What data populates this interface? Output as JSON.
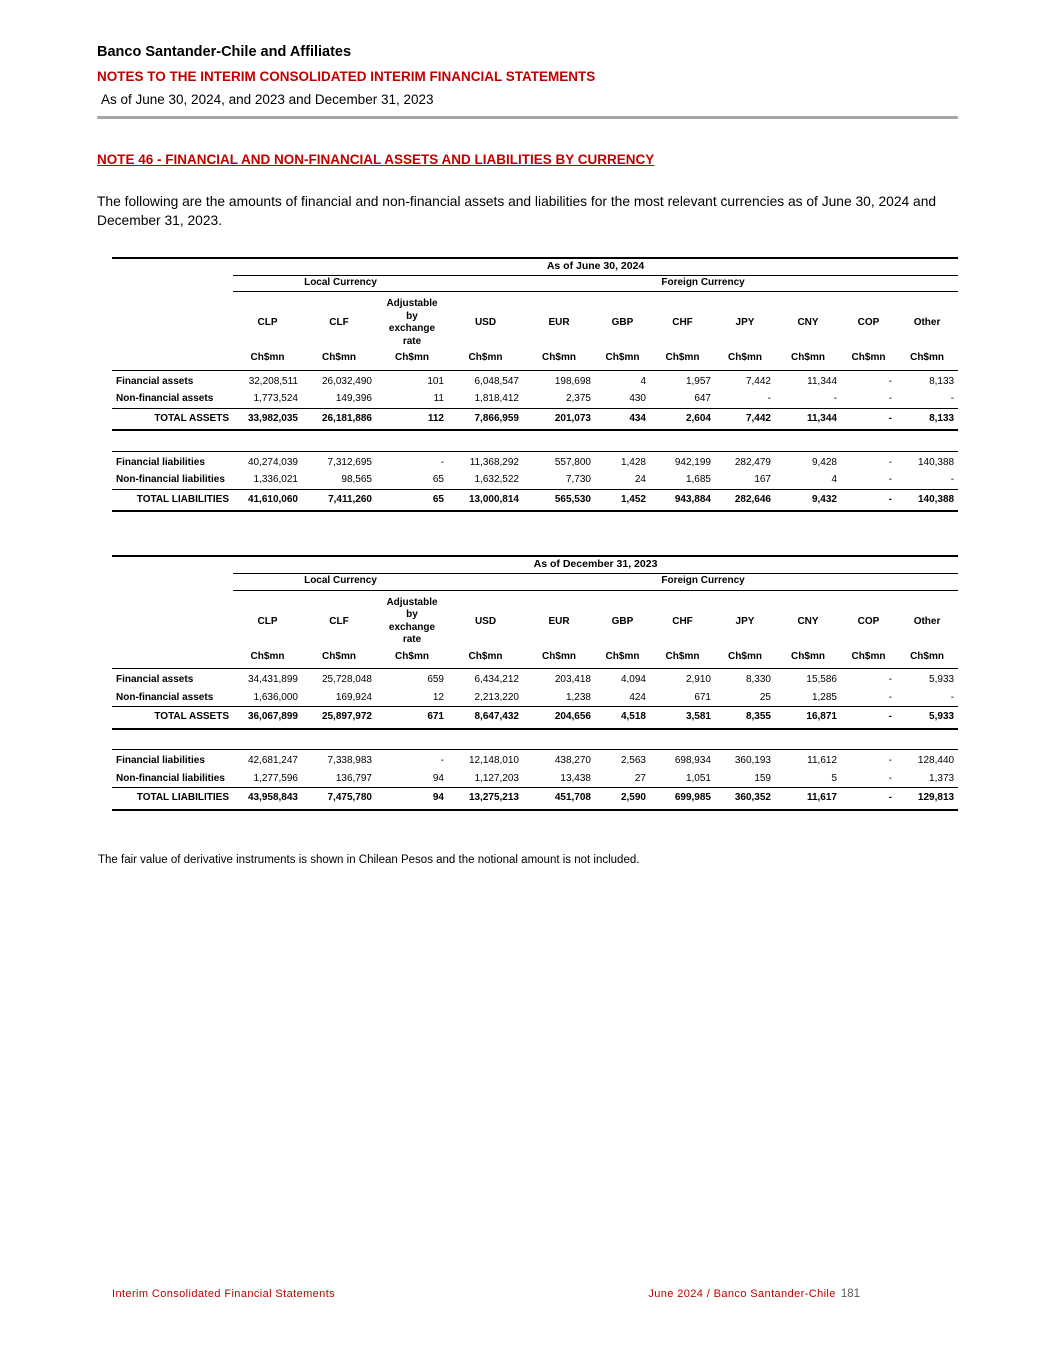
{
  "header": {
    "company": "Banco Santander-Chile and Affiliates",
    "notes_title": "NOTES TO THE INTERIM CONSOLIDATED INTERIM FINANCIAL STATEMENTS",
    "date_line": "As of June 30, 2024, and 2023 and December 31, 2023"
  },
  "note": {
    "title": "NOTE 46 - FINANCIAL AND NON-FINANCIAL ASSETS AND LIABILITIES BY CURRENCY",
    "intro": "The following are the amounts of financial and non-financial assets and liabilities for the most relevant currencies as of June 30, 2024 and December 31, 2023."
  },
  "tables": [
    {
      "title": "As of June 30, 2024",
      "local_currency_label": "Local Currency",
      "foreign_currency_label": "Foreign Currency",
      "columns": [
        "CLP",
        "CLF",
        "Adjustable by exchange rate",
        "USD",
        "EUR",
        "GBP",
        "CHF",
        "JPY",
        "CNY",
        "COP",
        "Other"
      ],
      "unit": "Ch$mn",
      "sections": [
        {
          "rows": [
            {
              "label": "Financial assets",
              "values": [
                "32,208,511",
                "26,032,490",
                "101",
                "6,048,547",
                "198,698",
                "4",
                "1,957",
                "7,442",
                "11,344",
                "-",
                "8,133"
              ]
            },
            {
              "label": "Non-financial assets",
              "values": [
                "1,773,524",
                "149,396",
                "11",
                "1,818,412",
                "2,375",
                "430",
                "647",
                "-",
                "-",
                "-",
                "-"
              ],
              "underline": true
            },
            {
              "label": "TOTAL ASSETS",
              "values": [
                "33,982,035",
                "26,181,886",
                "112",
                "7,866,959",
                "201,073",
                "434",
                "2,604",
                "7,442",
                "11,344",
                "-",
                "8,133"
              ],
              "total": true
            }
          ]
        },
        {
          "rows": [
            {
              "label": "Financial liabilities",
              "values": [
                "40,274,039",
                "7,312,695",
                "-",
                "11,368,292",
                "557,800",
                "1,428",
                "942,199",
                "282,479",
                "9,428",
                "-",
                "140,388"
              ],
              "topline": true
            },
            {
              "label": "Non-financial liabilities",
              "values": [
                "1,336,021",
                "98,565",
                "65",
                "1,632,522",
                "7,730",
                "24",
                "1,685",
                "167",
                "4",
                "-",
                "-"
              ],
              "underline": true
            },
            {
              "label": "TOTAL LIABILITIES",
              "values": [
                "41,610,060",
                "7,411,260",
                "65",
                "13,000,814",
                "565,530",
                "1,452",
                "943,884",
                "282,646",
                "9,432",
                "-",
                "140,388"
              ],
              "total": true
            }
          ]
        }
      ]
    },
    {
      "title": "As of December 31, 2023",
      "local_currency_label": "Local Currency",
      "foreign_currency_label": "Foreign Currency",
      "columns": [
        "CLP",
        "CLF",
        "Adjustable by exchange rate",
        "USD",
        "EUR",
        "GBP",
        "CHF",
        "JPY",
        "CNY",
        "COP",
        "Other"
      ],
      "unit": "Ch$mn",
      "sections": [
        {
          "rows": [
            {
              "label": "Financial assets",
              "values": [
                "34,431,899",
                "25,728,048",
                "659",
                "6,434,212",
                "203,418",
                "4,094",
                "2,910",
                "8,330",
                "15,586",
                "-",
                "5,933"
              ]
            },
            {
              "label": "Non-financial assets",
              "values": [
                "1,636,000",
                "169,924",
                "12",
                "2,213,220",
                "1,238",
                "424",
                "671",
                "25",
                "1,285",
                "-",
                "-"
              ],
              "underline": true
            },
            {
              "label": "TOTAL ASSETS",
              "values": [
                "36,067,899",
                "25,897,972",
                "671",
                "8,647,432",
                "204,656",
                "4,518",
                "3,581",
                "8,355",
                "16,871",
                "-",
                "5,933"
              ],
              "total": true
            }
          ]
        },
        {
          "rows": [
            {
              "label": "Financial liabilities",
              "values": [
                "42,681,247",
                "7,338,983",
                "-",
                "12,148,010",
                "438,270",
                "2,563",
                "698,934",
                "360,193",
                "11,612",
                "-",
                "128,440"
              ],
              "topline": true
            },
            {
              "label": "Non-financial liabilities",
              "values": [
                "1,277,596",
                "136,797",
                "94",
                "1,127,203",
                "13,438",
                "27",
                "1,051",
                "159",
                "5",
                "-",
                "1,373"
              ],
              "underline": true
            },
            {
              "label": "TOTAL LIABILITIES",
              "values": [
                "43,958,843",
                "7,475,780",
                "94",
                "13,275,213",
                "451,708",
                "2,590",
                "699,985",
                "360,352",
                "11,617",
                "-",
                "129,813"
              ],
              "total": true
            }
          ]
        }
      ]
    }
  ],
  "footnote": "The fair value of derivative instruments is shown in Chilean Pesos and the notional amount is not included.",
  "footer": {
    "left": "Interim Consolidated Financial Statements",
    "right": "June 2024 / Banco Santander-Chile",
    "page": "181"
  },
  "colors": {
    "accent_red": "#C00000",
    "rule_gray": "#A6A6A6",
    "page_number_gray": "#595959"
  }
}
